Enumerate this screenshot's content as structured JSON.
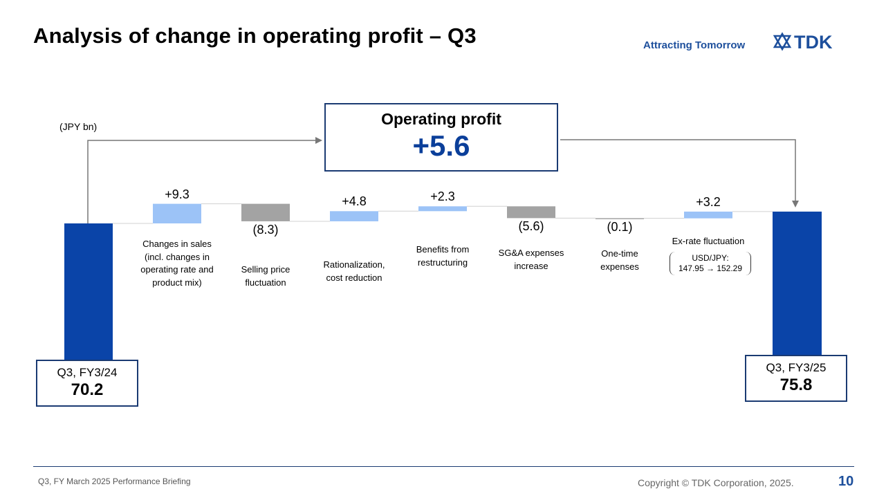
{
  "header": {
    "title": "Analysis of change in operating profit – Q3",
    "tagline": "Attracting Tomorrow",
    "logo_text": "TDK"
  },
  "colors": {
    "base_bar": "#0a44a8",
    "positive_bar": "#9cc3f7",
    "negative_bar": "#a3a3a3",
    "accent": "#1d4f9c",
    "box_border": "#1a3a72"
  },
  "operating_profit": {
    "label": "Operating profit",
    "value": "+5.6"
  },
  "fx_note": {
    "line1": "USD/JPY:",
    "line2": "147.95 → 152.29"
  },
  "chart_data": {
    "type": "bar",
    "subtype": "waterfall",
    "unit_label": "(JPY bn)",
    "start": {
      "label": "Q3, FY3/24",
      "value": 70.2,
      "display": "70.2"
    },
    "end": {
      "label": "Q3, FY3/25",
      "value": 75.8,
      "display": "75.8"
    },
    "steps": [
      {
        "label": "Changes in sales (incl. changes in operating rate and product mix)",
        "label_lines": [
          "Changes in sales",
          "(incl. changes in",
          "operating rate and",
          "product mix)"
        ],
        "value": 9.3,
        "display": "+9.3"
      },
      {
        "label": "Selling price fluctuation",
        "label_lines": [
          "Selling price",
          "fluctuation"
        ],
        "value": -8.3,
        "display": "(8.3)"
      },
      {
        "label": "Rationalization, cost reduction",
        "label_lines": [
          "Rationalization,",
          "cost reduction"
        ],
        "value": 4.8,
        "display": "+4.8"
      },
      {
        "label": "Benefits from restructuring",
        "label_lines": [
          "Benefits from",
          "restructuring"
        ],
        "value": 2.3,
        "display": "+2.3"
      },
      {
        "label": "SG&A expenses increase",
        "label_lines": [
          "SG&A expenses",
          "increase"
        ],
        "value": -5.6,
        "display": "(5.6)"
      },
      {
        "label": "One-time expenses",
        "label_lines": [
          "One-time",
          "expenses"
        ],
        "value": -0.1,
        "display": "(0.1)"
      },
      {
        "label": "Ex-rate fluctuation",
        "label_lines": [
          "Ex-rate fluctuation"
        ],
        "value": 3.2,
        "display": "+3.2"
      }
    ]
  },
  "footer": {
    "left": "Q3, FY March 2025 Performance  Briefing",
    "right": "Copyright  © TDK Corporation, 2025.",
    "page": "10"
  }
}
